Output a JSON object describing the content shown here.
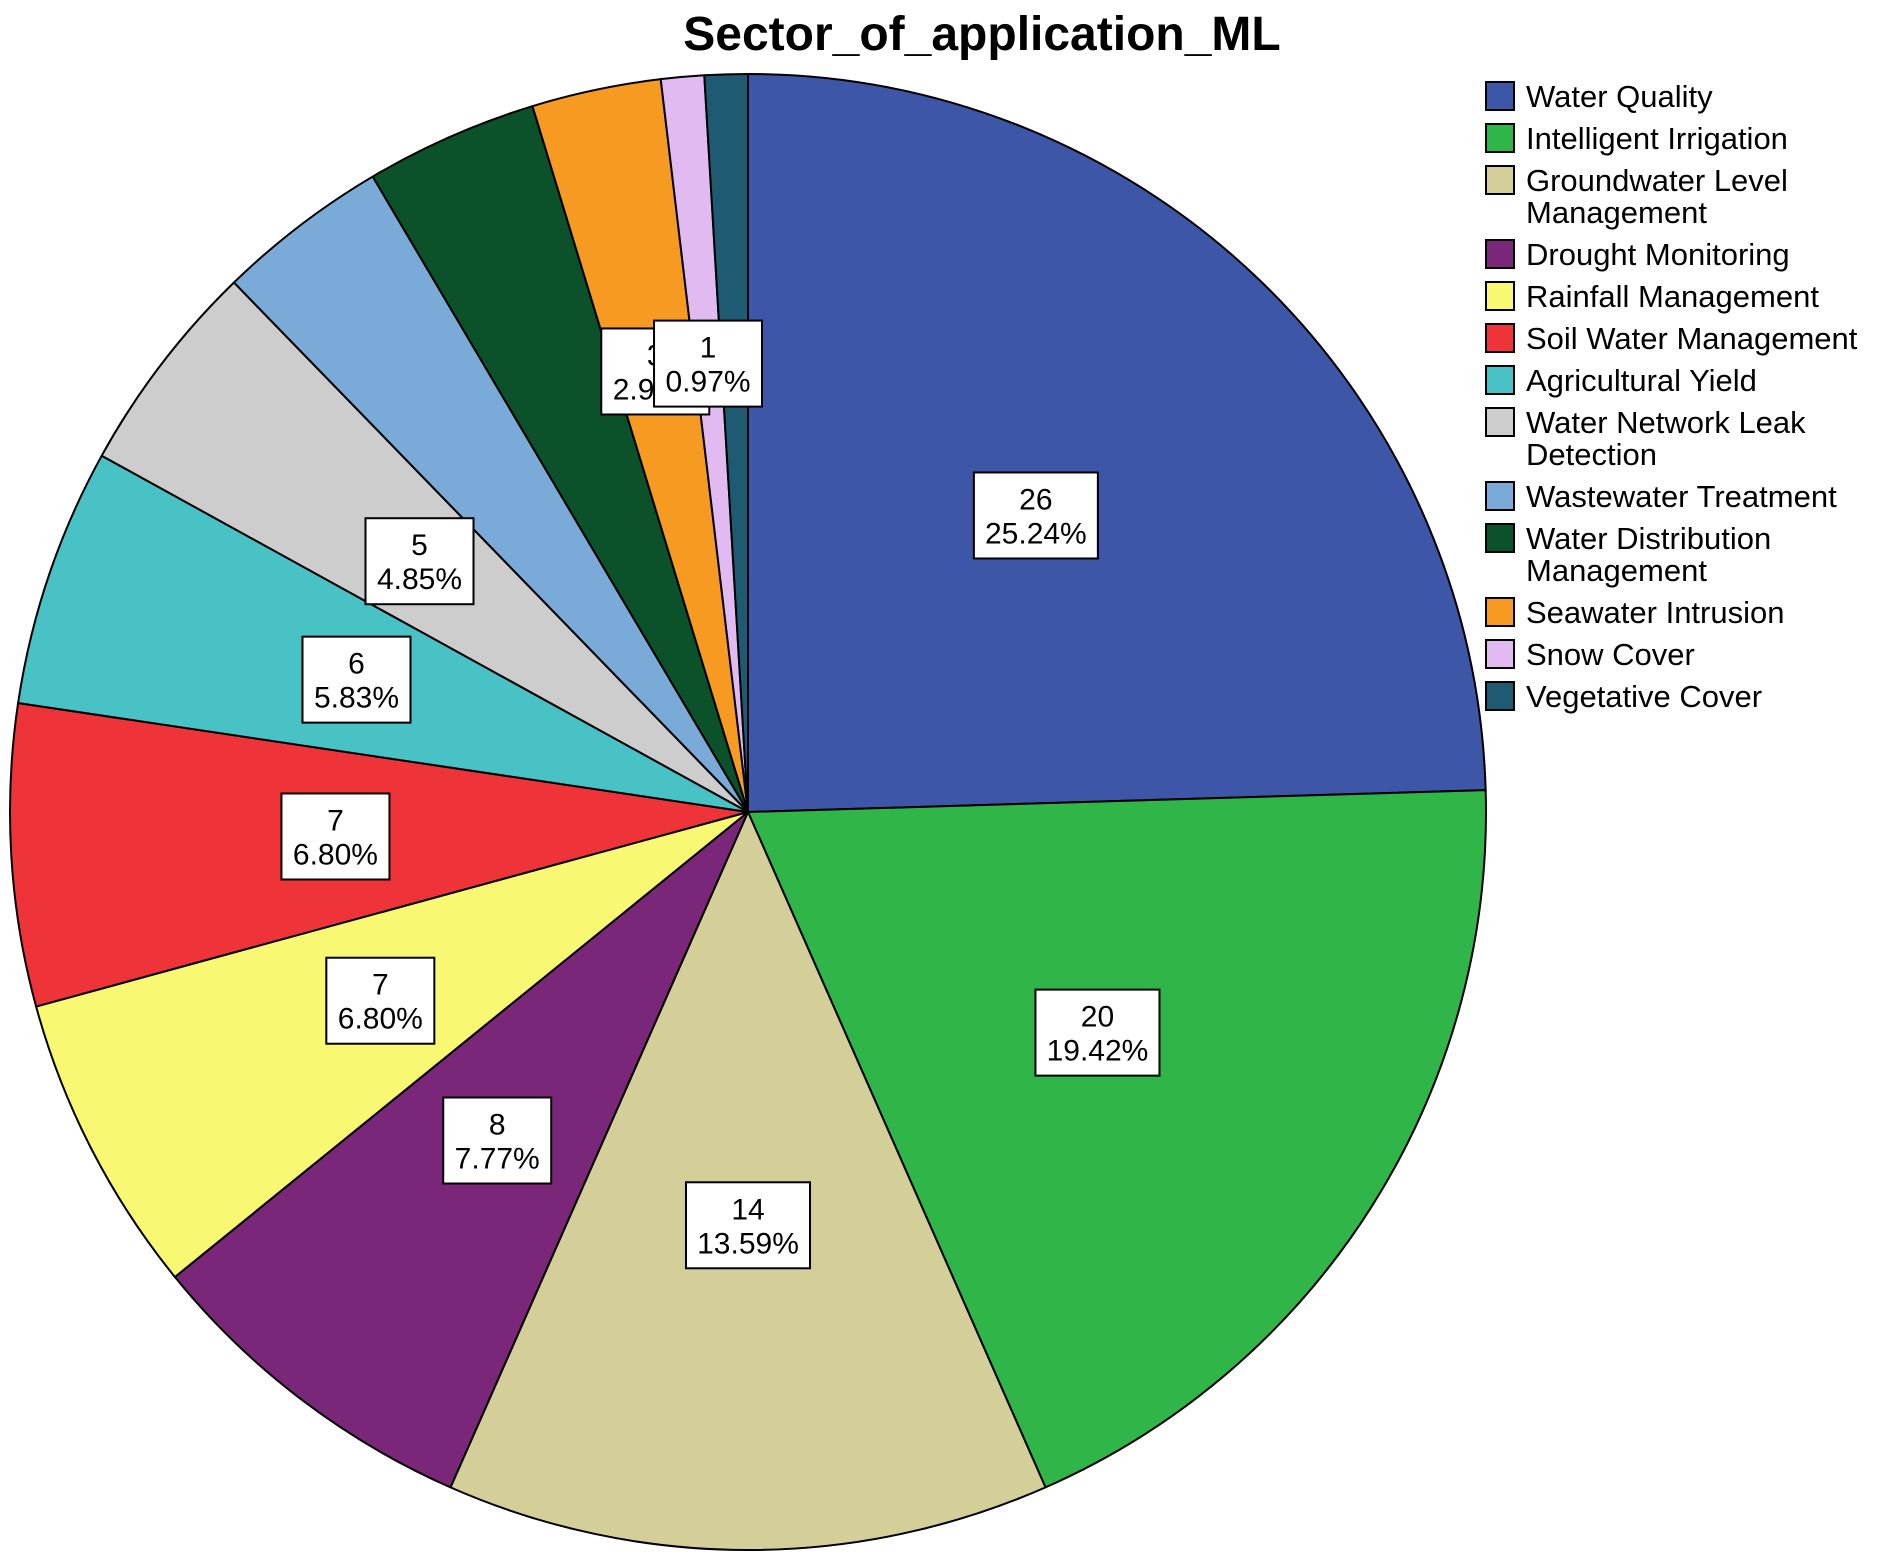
{
  "chart_data": {
    "type": "pie",
    "title": "Sector_of_application_ML",
    "legend_position": "right",
    "slices": [
      {
        "name": "Water Quality",
        "value": 26,
        "percent": "25.24%",
        "color": "#3d56a8"
      },
      {
        "name": "Intelligent Irrigation",
        "value": 20,
        "percent": "19.42%",
        "color": "#2fb548"
      },
      {
        "name": "Groundwater Level Management",
        "legend_lines": [
          "Groundwater Level",
          "Management"
        ],
        "value": 14,
        "percent": "13.59%",
        "color": "#d4cf98"
      },
      {
        "name": "Drought Monitoring",
        "value": 8,
        "percent": "7.77%",
        "color": "#7b2779"
      },
      {
        "name": "Rainfall Management",
        "value": 7,
        "percent": "6.80%",
        "color": "#f9f872"
      },
      {
        "name": "Soil Water Management",
        "value": 7,
        "percent": "6.80%",
        "color": "#ef3439"
      },
      {
        "name": "Agricultural Yield",
        "value": 6,
        "percent": "5.83%",
        "color": "#48c2c5"
      },
      {
        "name": "Water Network Leak Detection",
        "legend_lines": [
          "Water Network Leak",
          "Detection"
        ],
        "value": 5,
        "percent": "4.85%",
        "color": "#cdcdcd"
      },
      {
        "name": "Wastewater Treatment",
        "value": 4,
        "percent": "3.88%",
        "color": "#7aaad8"
      },
      {
        "name": "Water Distribution Management",
        "legend_lines": [
          "Water Distribution",
          "Management"
        ],
        "value": 4,
        "percent": "3.88%",
        "color": "#0b5129"
      },
      {
        "name": "Seawater Intrusion",
        "value": 3,
        "percent": "2.91%",
        "color": "#f79a21"
      },
      {
        "name": "Snow Cover",
        "value": 1,
        "percent": "0.97%",
        "color": "#e1baf1"
      },
      {
        "name": "Vegetative Cover",
        "value": 1,
        "percent": "0.97%",
        "color": "#1e5b73"
      }
    ],
    "visible_labels": [
      0,
      1,
      2,
      3,
      4,
      5,
      6,
      7,
      10,
      11
    ]
  }
}
